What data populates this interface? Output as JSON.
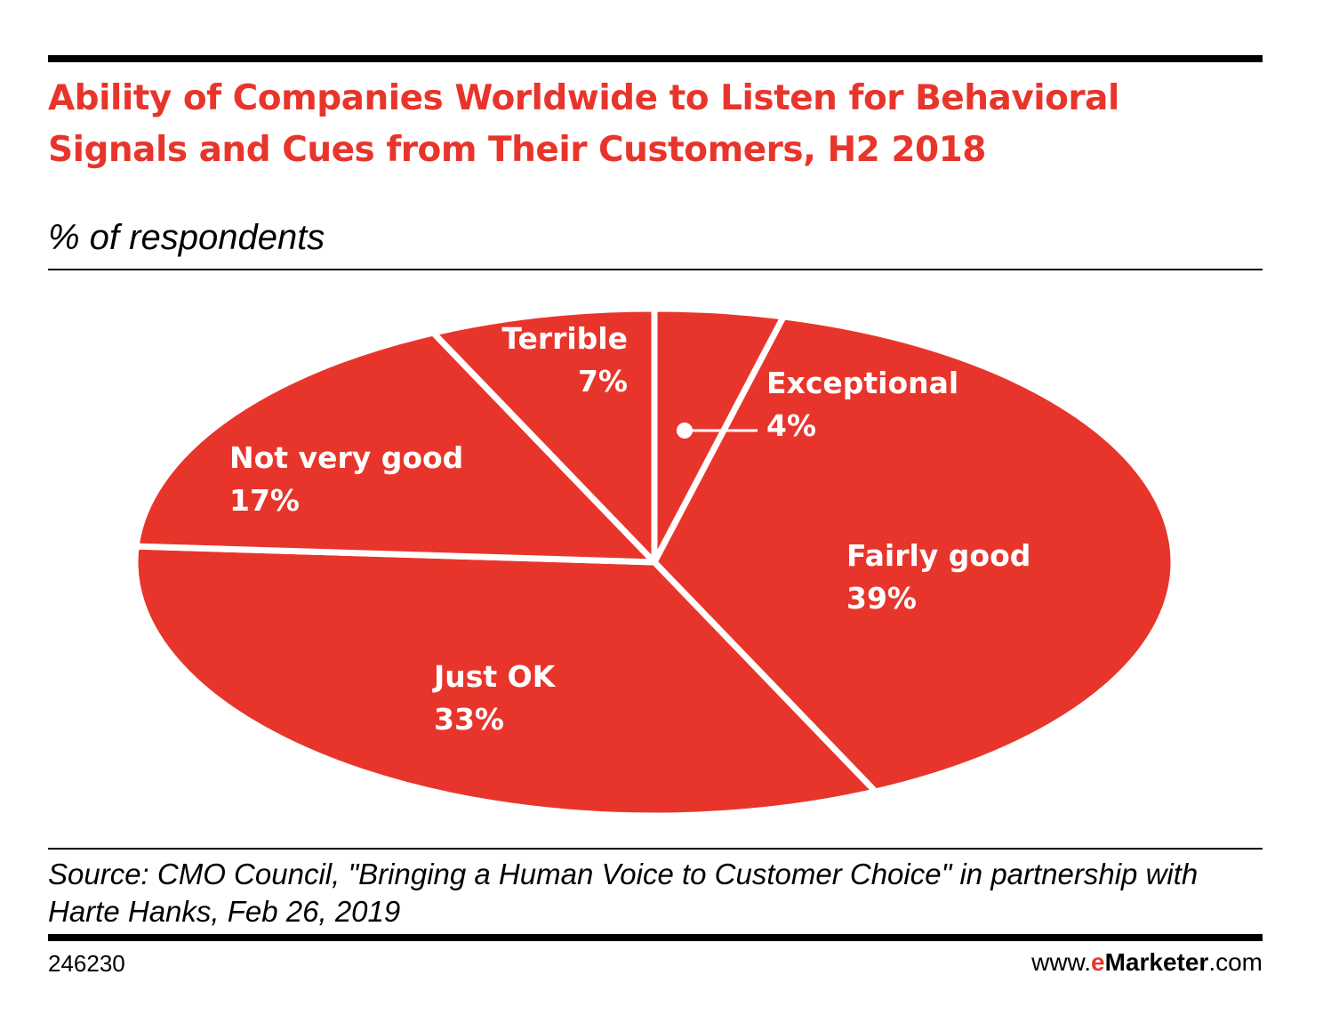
{
  "title": "Ability of Companies Worldwide to Listen for Behavioral Signals and Cues from Their Customers, H2 2018",
  "subtitle": "% of respondents",
  "source": "Source: CMO Council, \"Bringing a Human Voice to Customer Choice\" in partnership with Harte Hanks, Feb 26, 2019",
  "chart_id": "246230",
  "brand": {
    "prefix": "www.",
    "e": "e",
    "marketer": "Marketer",
    "suffix": ".com"
  },
  "colors": {
    "slice": "#e8352b",
    "separator": "#ffffff",
    "title": "#e8352b"
  },
  "chart_data": {
    "type": "pie",
    "title": "Ability of Companies Worldwide to Listen for Behavioral Signals and Cues from Their Customers, H2 2018",
    "subtitle": "% of respondents",
    "unit": "%",
    "slices": [
      {
        "label": "Exceptional",
        "value": 4,
        "display": "4%"
      },
      {
        "label": "Fairly good",
        "value": 39,
        "display": "39%"
      },
      {
        "label": "Just OK",
        "value": 33,
        "display": "33%"
      },
      {
        "label": "Not very good",
        "value": 17,
        "display": "17%"
      },
      {
        "label": "Terrible",
        "value": 7,
        "display": "7%"
      }
    ]
  }
}
